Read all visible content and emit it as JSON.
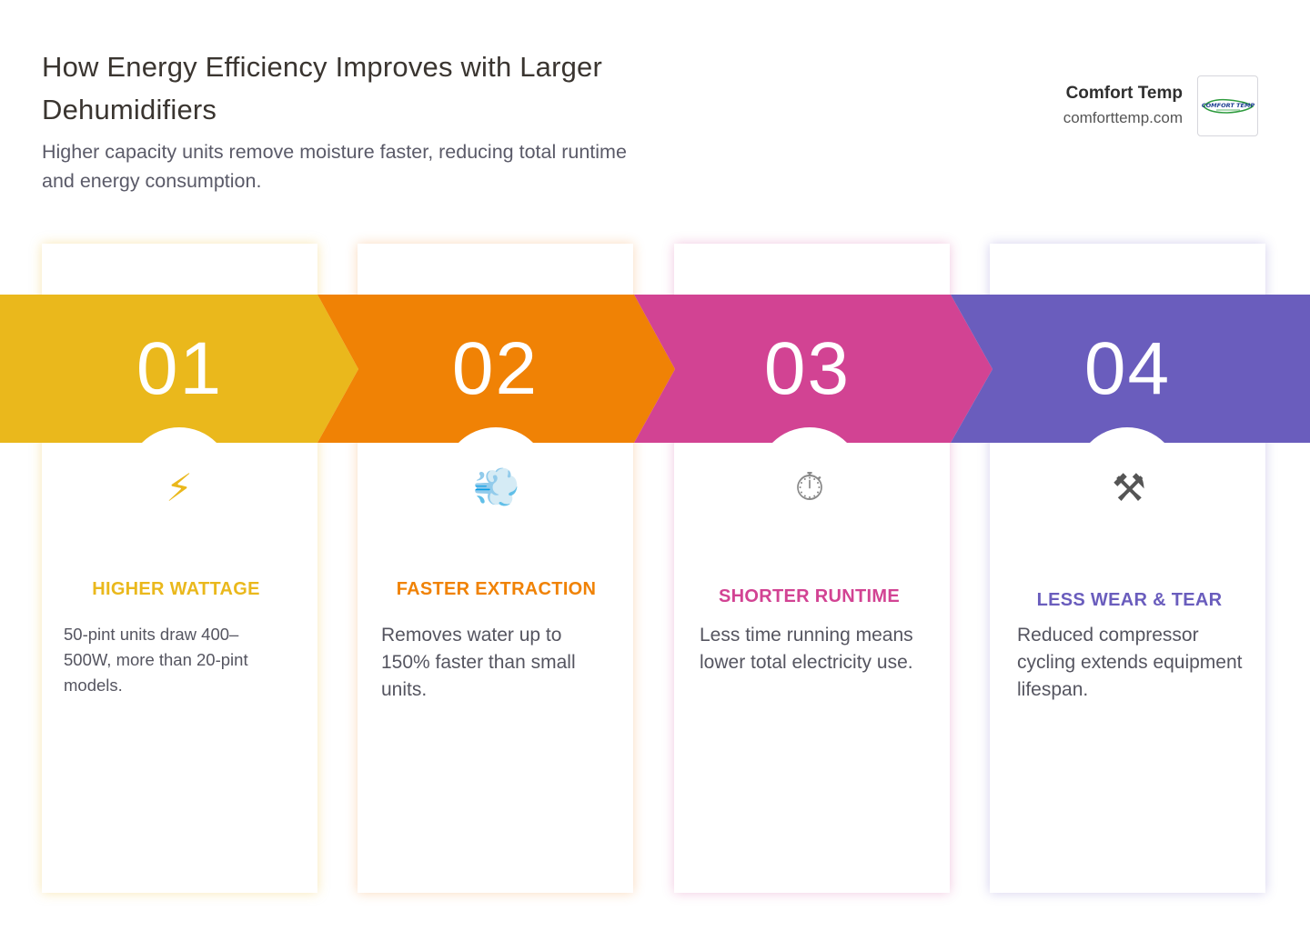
{
  "header": {
    "title": "How Energy Efficiency Improves with Larger Dehumidifiers",
    "subtitle": "Higher capacity units remove moisture faster, reducing total runtime and energy consumption."
  },
  "brand": {
    "name": "Comfort Temp",
    "url": "comforttemp.com",
    "logo_text": "COMFORT TEMP"
  },
  "steps": [
    {
      "number": "01",
      "icon": "lightning-icon",
      "icon_glyph": "⚡",
      "title": "HIGHER WATTAGE",
      "description": "50-pint units draw 400–500W, more than 20-pint models.",
      "color": "#EAB81C"
    },
    {
      "number": "02",
      "icon": "wind-cloud-icon",
      "icon_glyph": "💨",
      "title": "FASTER EXTRACTION",
      "description": "Removes water up to 150% faster than small units.",
      "color": "#F08205"
    },
    {
      "number": "03",
      "icon": "stopwatch-icon",
      "icon_glyph": "⏱",
      "title": "SHORTER RUNTIME",
      "description": "Less time running means lower total electricity use.",
      "color": "#D24393"
    },
    {
      "number": "04",
      "icon": "tools-icon",
      "icon_glyph": "⚒",
      "title": "LESS WEAR & TEAR",
      "description": "Reduced compressor cycling extends equipment lifespan.",
      "color": "#6A5DBD"
    }
  ]
}
